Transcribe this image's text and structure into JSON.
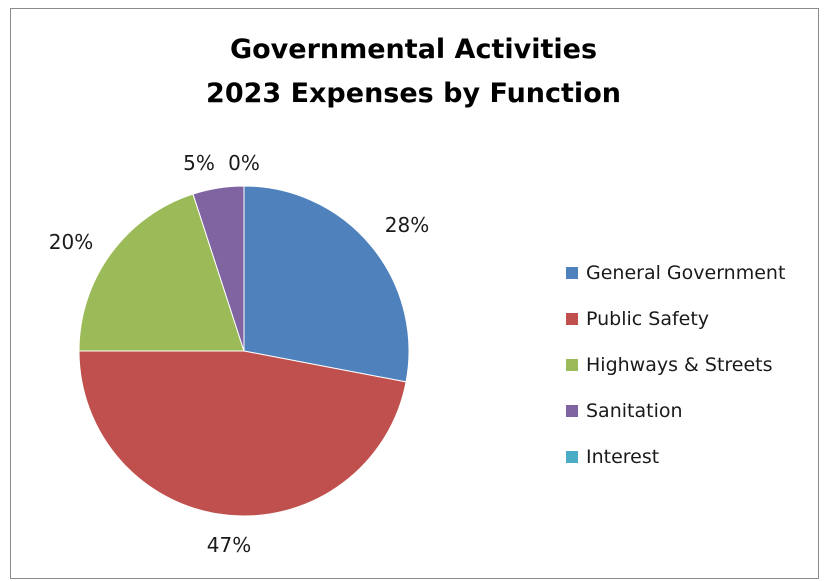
{
  "chart_data": {
    "type": "pie",
    "title": [
      "Governmental Activities",
      "2023 Expenses by Function"
    ],
    "categories": [
      "General Government",
      "Public Safety",
      "Highways & Streets",
      "Sanitation",
      "Interest"
    ],
    "values": [
      28,
      47,
      20,
      5,
      0
    ],
    "value_labels": [
      "28%",
      "47%",
      "20%",
      "5%",
      "0%"
    ],
    "colors": [
      "#4f81bd",
      "#c0504d",
      "#9bbb59",
      "#8064a2",
      "#4bacc6"
    ],
    "start_angle": "12 o'clock",
    "direction": "clockwise",
    "legend_position": "right"
  }
}
